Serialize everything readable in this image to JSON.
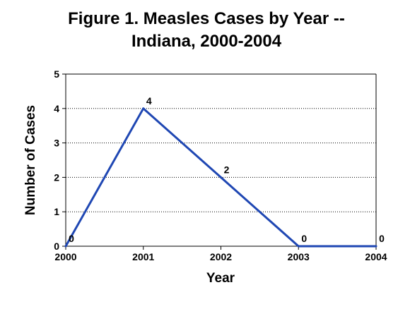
{
  "chart_data": {
    "type": "line",
    "title_lines": [
      "Figure 1. Measles Cases by Year --",
      "Indiana, 2000-2004"
    ],
    "xlabel": "Year",
    "ylabel": "Number of Cases",
    "x": [
      "2000",
      "2001",
      "2002",
      "2003",
      "2004"
    ],
    "series": [
      {
        "values": [
          0,
          4,
          2,
          0,
          0
        ],
        "color": "#1f47b3",
        "data_labels": [
          "0",
          "4",
          "2",
          "0",
          "0"
        ]
      }
    ],
    "ylim": [
      0,
      5
    ],
    "yticks": [
      "0",
      "1",
      "2",
      "3",
      "4",
      "5"
    ],
    "grid": "horizontal-dotted",
    "legend": "none"
  }
}
